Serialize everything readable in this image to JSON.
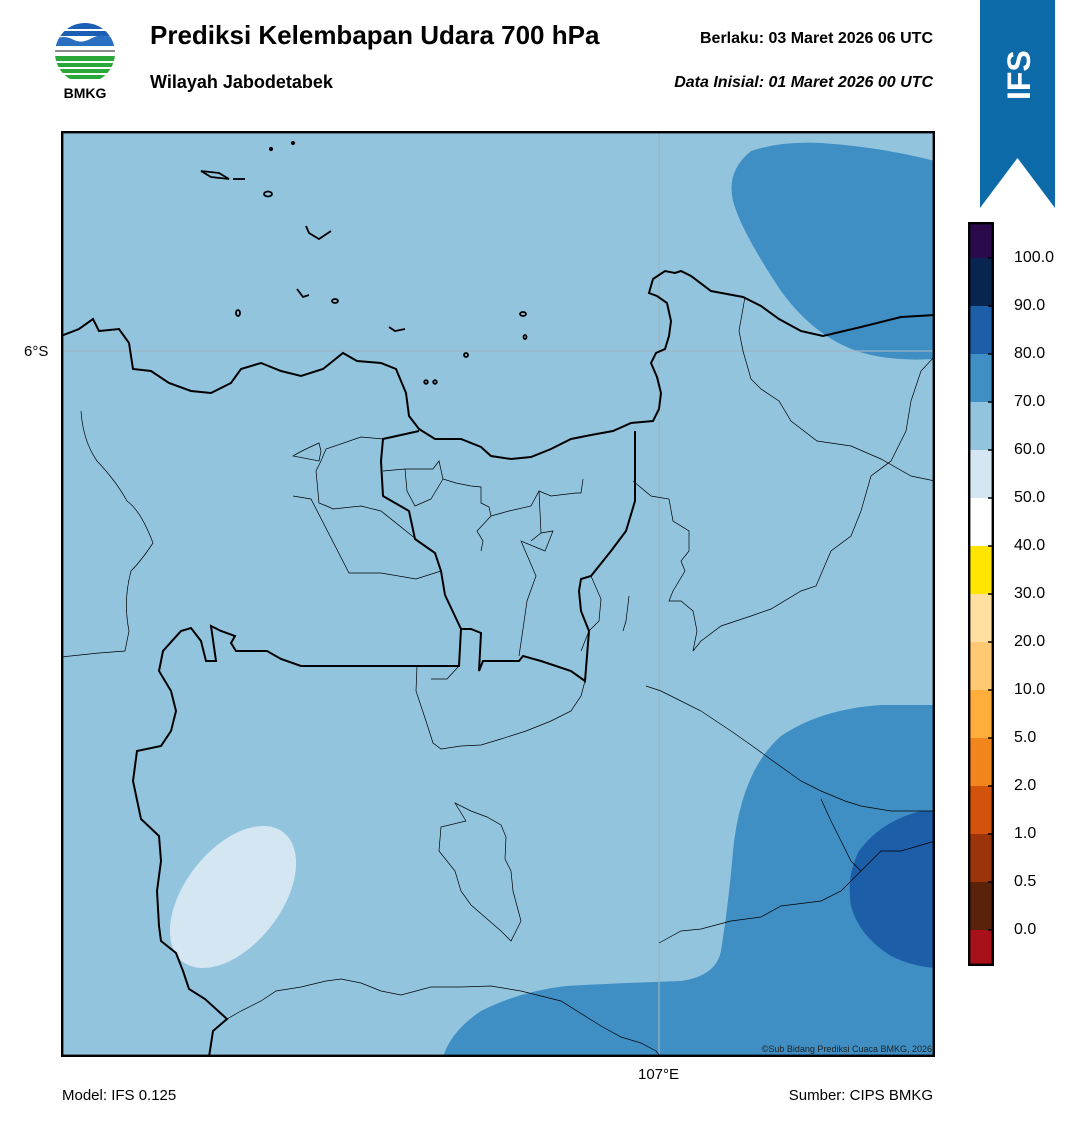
{
  "header": {
    "logo_text": "BMKG",
    "title": "Prediksi Kelembapan Udara 700 hPa",
    "subtitle": "Wilayah Jabodetabek",
    "valid_label": "Berlaku:  03 Maret 2026 06 UTC",
    "init_label": "Data Inisial:  01 Maret 2026 00 UTC",
    "ribbon_text": "IFS"
  },
  "map": {
    "lat_label": "6°S",
    "lon_label": "107°E",
    "credit": "©Sub Bidang Prediksi Cuaca BMKG, 2026",
    "background_color": "#93c4de"
  },
  "footer": {
    "model": "Model: IFS 0.125",
    "source": "Sumber: CIPS BMKG"
  },
  "colorbar": {
    "ticks": [
      "100.0",
      "90.0",
      "80.0",
      "70.0",
      "60.0",
      "50.0",
      "40.0",
      "30.0",
      "20.0",
      "10.0",
      "5.0",
      "2.0",
      "1.0",
      "0.5",
      "0.0"
    ],
    "colors_top_to_bottom": [
      "#2a0a4a",
      "#08254f",
      "#1d5ea8",
      "#3f8fc4",
      "#93c4de",
      "#d4e6f2",
      "#ffffff",
      "#ffe500",
      "#ffe0a0",
      "#ffc873",
      "#ffae3c",
      "#f2861c",
      "#d4530c",
      "#9b3408",
      "#5a210b",
      "#a8101a",
      "#ea3a2c"
    ]
  }
}
